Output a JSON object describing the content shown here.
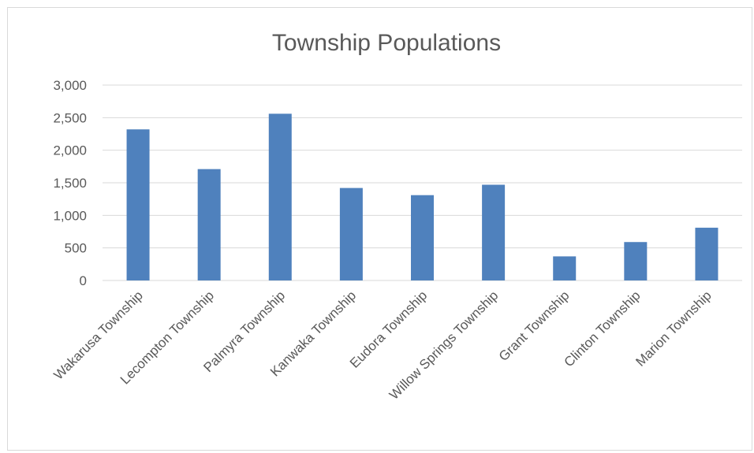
{
  "chart_data": {
    "type": "bar",
    "title": "Township Populations",
    "xlabel": "",
    "ylabel": "",
    "categories": [
      "Wakarusa Township",
      "Lecompton Township",
      "Palmyra Township",
      "Kanwaka Township",
      "Eudora Township",
      "Willow Springs Township",
      "Grant Township",
      "Clinton Township",
      "Marion Township"
    ],
    "values": [
      2320,
      1710,
      2560,
      1420,
      1310,
      1470,
      370,
      590,
      810
    ],
    "ylim": [
      0,
      3000
    ],
    "yticks": [
      0,
      500,
      1000,
      1500,
      2000,
      2500,
      3000
    ],
    "ytick_labels": [
      "0",
      "500",
      "1,000",
      "1,500",
      "2,000",
      "2,500",
      "3,000"
    ],
    "grid": true,
    "legend": "none",
    "bar_color": "#4f81bd"
  }
}
